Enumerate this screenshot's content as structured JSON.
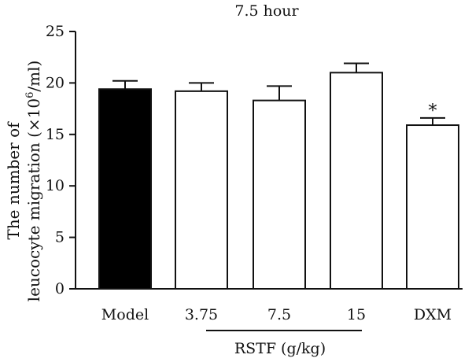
{
  "chart_data": {
    "type": "bar",
    "title": "7.5 hour",
    "ylabel_line1": "The number of",
    "ylabel_line2_prefix": "leucocyte migration (×10",
    "ylabel_superscript": "6",
    "ylabel_line2_suffix": "/ml)",
    "categories": [
      "Model",
      "3.75",
      "7.5",
      "15",
      "DXM"
    ],
    "values": [
      19.4,
      19.2,
      18.3,
      21.0,
      15.9
    ],
    "errors": [
      0.8,
      0.8,
      1.4,
      0.9,
      0.7
    ],
    "fills": [
      "#000000",
      "#ffffff",
      "#ffffff",
      "#ffffff",
      "#ffffff"
    ],
    "significance": [
      "",
      "",
      "",
      "",
      "*"
    ],
    "ylim": [
      0,
      25
    ],
    "yticks": [
      0,
      5,
      10,
      15,
      20,
      25
    ],
    "group_label": "RSTF (g/kg)",
    "grid": false
  }
}
